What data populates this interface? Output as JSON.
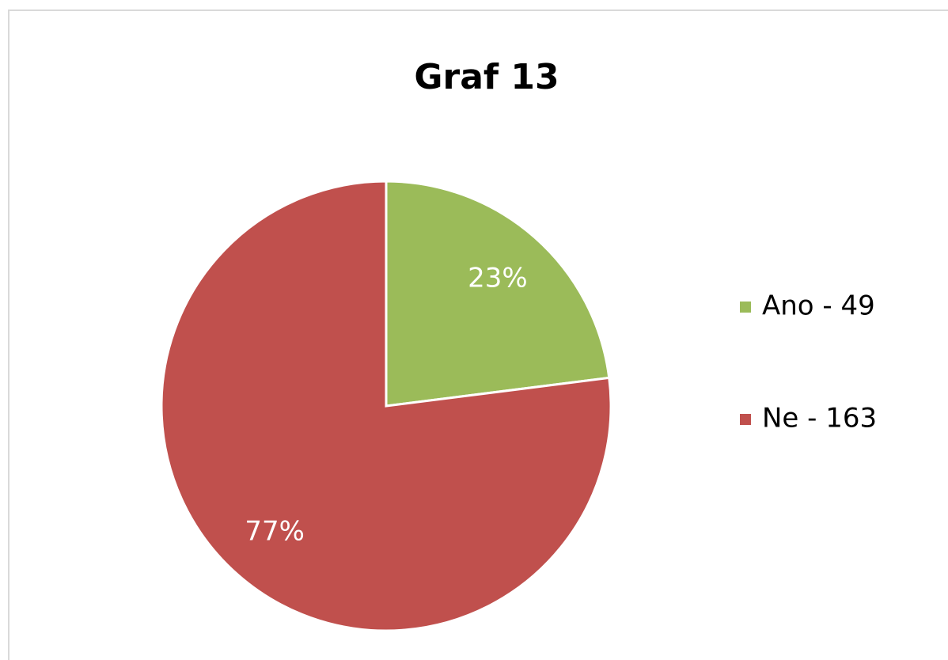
{
  "chart_data": {
    "type": "pie",
    "title": "Graf 13",
    "categories": [
      "Ano - 49",
      "Ne - 163"
    ],
    "values": [
      23,
      77
    ],
    "value_labels": [
      "23%",
      "77%"
    ],
    "colors": [
      "#9bbb59",
      "#c0504d"
    ],
    "legend": "right"
  }
}
